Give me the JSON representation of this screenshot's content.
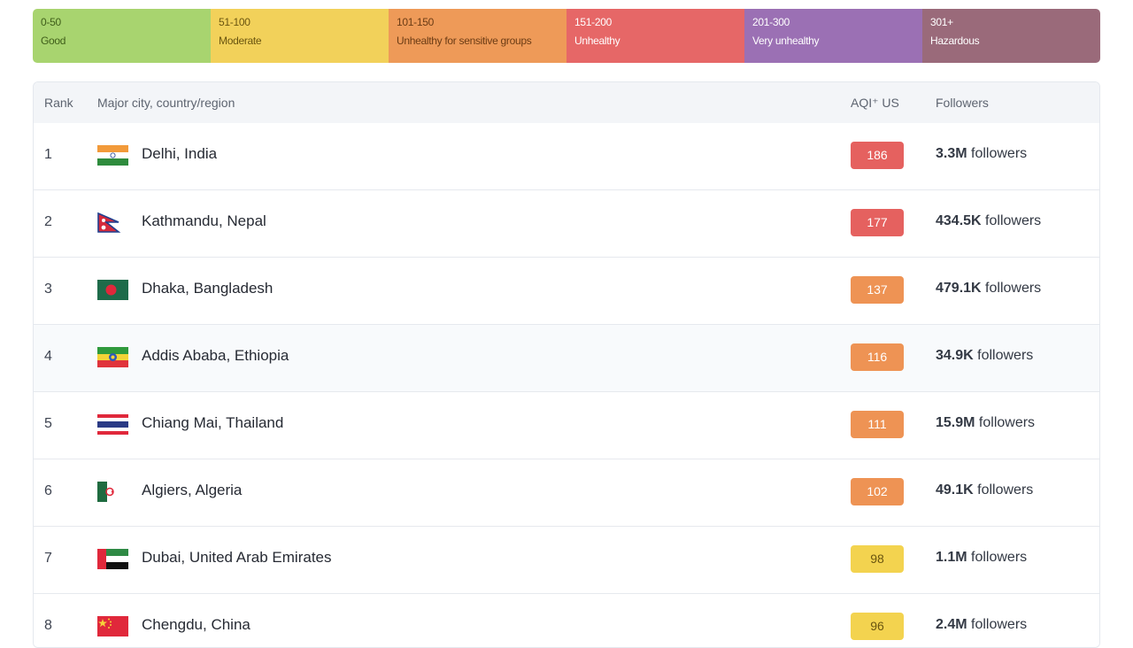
{
  "legend": [
    {
      "range": "0-50",
      "label": "Good",
      "color": "#a8d46f",
      "text_color": "#3f5e1a"
    },
    {
      "range": "51-100",
      "label": "Moderate",
      "color": "#f2d15a",
      "text_color": "#6a5510"
    },
    {
      "range": "101-150",
      "label": "Unhealthy for sensitive groups",
      "color": "#ee9a58",
      "text_color": "#6b3c15"
    },
    {
      "range": "151-200",
      "label": "Unhealthy",
      "color": "#e66767",
      "text_color": "#ffffff"
    },
    {
      "range": "201-300",
      "label": "Very unhealthy",
      "color": "#9b70b4",
      "text_color": "#ffffff"
    },
    {
      "range": "301+",
      "label": "Hazardous",
      "color": "#9a6a7a",
      "text_color": "#ffffff"
    }
  ],
  "table": {
    "headers": {
      "rank": "Rank",
      "city": "Major city, country/region",
      "aqi": "AQI⁺ US",
      "followers": "Followers"
    },
    "rows": [
      {
        "rank": "1",
        "city": "Delhi, India",
        "flag": "india-flag-icon",
        "aqi": "186",
        "aqi_color": "#e5615f",
        "followers_count": "3.3M",
        "followers_suffix": " followers"
      },
      {
        "rank": "2",
        "city": "Kathmandu, Nepal",
        "flag": "nepal-flag-icon",
        "aqi": "177",
        "aqi_color": "#e5615f",
        "followers_count": "434.5K",
        "followers_suffix": " followers"
      },
      {
        "rank": "3",
        "city": "Dhaka, Bangladesh",
        "flag": "bangladesh-flag-icon",
        "aqi": "137",
        "aqi_color": "#ee9354",
        "followers_count": "479.1K",
        "followers_suffix": " followers"
      },
      {
        "rank": "4",
        "city": "Addis Ababa, Ethiopia",
        "flag": "ethiopia-flag-icon",
        "aqi": "116",
        "aqi_color": "#ee9354",
        "followers_count": "34.9K",
        "followers_suffix": " followers"
      },
      {
        "rank": "5",
        "city": "Chiang Mai, Thailand",
        "flag": "thailand-flag-icon",
        "aqi": "111",
        "aqi_color": "#ee9354",
        "followers_count": "15.9M",
        "followers_suffix": " followers"
      },
      {
        "rank": "6",
        "city": "Algiers, Algeria",
        "flag": "algeria-flag-icon",
        "aqi": "102",
        "aqi_color": "#ee9354",
        "followers_count": "49.1K",
        "followers_suffix": " followers"
      },
      {
        "rank": "7",
        "city": "Dubai, United Arab Emirates",
        "flag": "uae-flag-icon",
        "aqi": "98",
        "aqi_color": "#f3d34f",
        "followers_count": "1.1M",
        "followers_suffix": " followers"
      },
      {
        "rank": "8",
        "city": "Chengdu, China",
        "flag": "china-flag-icon",
        "aqi": "96",
        "aqi_color": "#f3d34f",
        "followers_count": "2.4M",
        "followers_suffix": " followers"
      }
    ]
  }
}
